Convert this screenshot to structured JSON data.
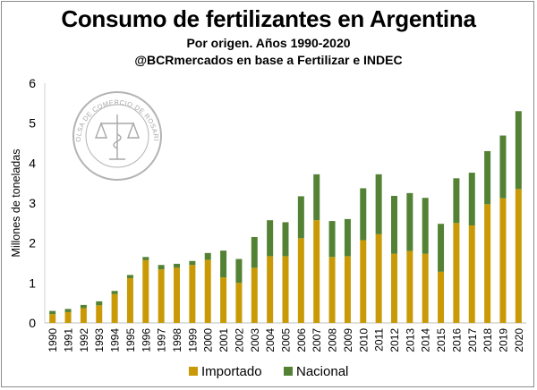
{
  "chart_data": {
    "type": "bar",
    "stacked": true,
    "title": "Consumo de fertilizantes en Argentina",
    "subtitle_1": "Por origen. Años 1990-2020",
    "subtitle_2": "@BCRmercados en base a Fertilizar e INDEC",
    "ylabel": "Millones de toneladas",
    "xlabel": "",
    "ylim": [
      0,
      6
    ],
    "yticks": [
      "0",
      "1",
      "2",
      "3",
      "4",
      "5",
      "6"
    ],
    "grid": false,
    "legend_position": "bottom",
    "categories": [
      "1990",
      "1991",
      "1992",
      "1993",
      "1994",
      "1995",
      "1996",
      "1997",
      "1998",
      "1999",
      "2000",
      "2001",
      "2002",
      "2003",
      "2004",
      "2005",
      "2006",
      "2007",
      "2008",
      "2009",
      "2010",
      "2011",
      "2012",
      "2013",
      "2014",
      "2015",
      "2016",
      "2017",
      "2018",
      "2019",
      "2020"
    ],
    "series": [
      {
        "name": "Importado",
        "color": "#c99a06",
        "values": [
          0.22,
          0.27,
          0.37,
          0.44,
          0.72,
          1.12,
          1.57,
          1.34,
          1.38,
          1.45,
          1.58,
          1.14,
          1.0,
          1.38,
          1.67,
          1.67,
          2.12,
          2.57,
          1.65,
          1.67,
          2.07,
          2.22,
          1.73,
          1.8,
          1.73,
          1.28,
          2.5,
          2.44,
          2.97,
          3.12,
          3.35
        ]
      },
      {
        "name": "Nacional",
        "color": "#548235",
        "values": [
          0.08,
          0.08,
          0.08,
          0.1,
          0.08,
          0.08,
          0.08,
          0.11,
          0.1,
          0.1,
          0.17,
          0.67,
          0.6,
          0.77,
          0.9,
          0.85,
          1.05,
          1.15,
          0.9,
          0.93,
          1.3,
          1.5,
          1.45,
          1.45,
          1.4,
          1.2,
          1.12,
          1.32,
          1.33,
          1.57,
          1.95
        ]
      }
    ]
  },
  "watermark": {
    "text_top": "BOLSA DE COMERCIO DE ROSARIO",
    "icon": "scales-of-justice-seal-icon"
  }
}
